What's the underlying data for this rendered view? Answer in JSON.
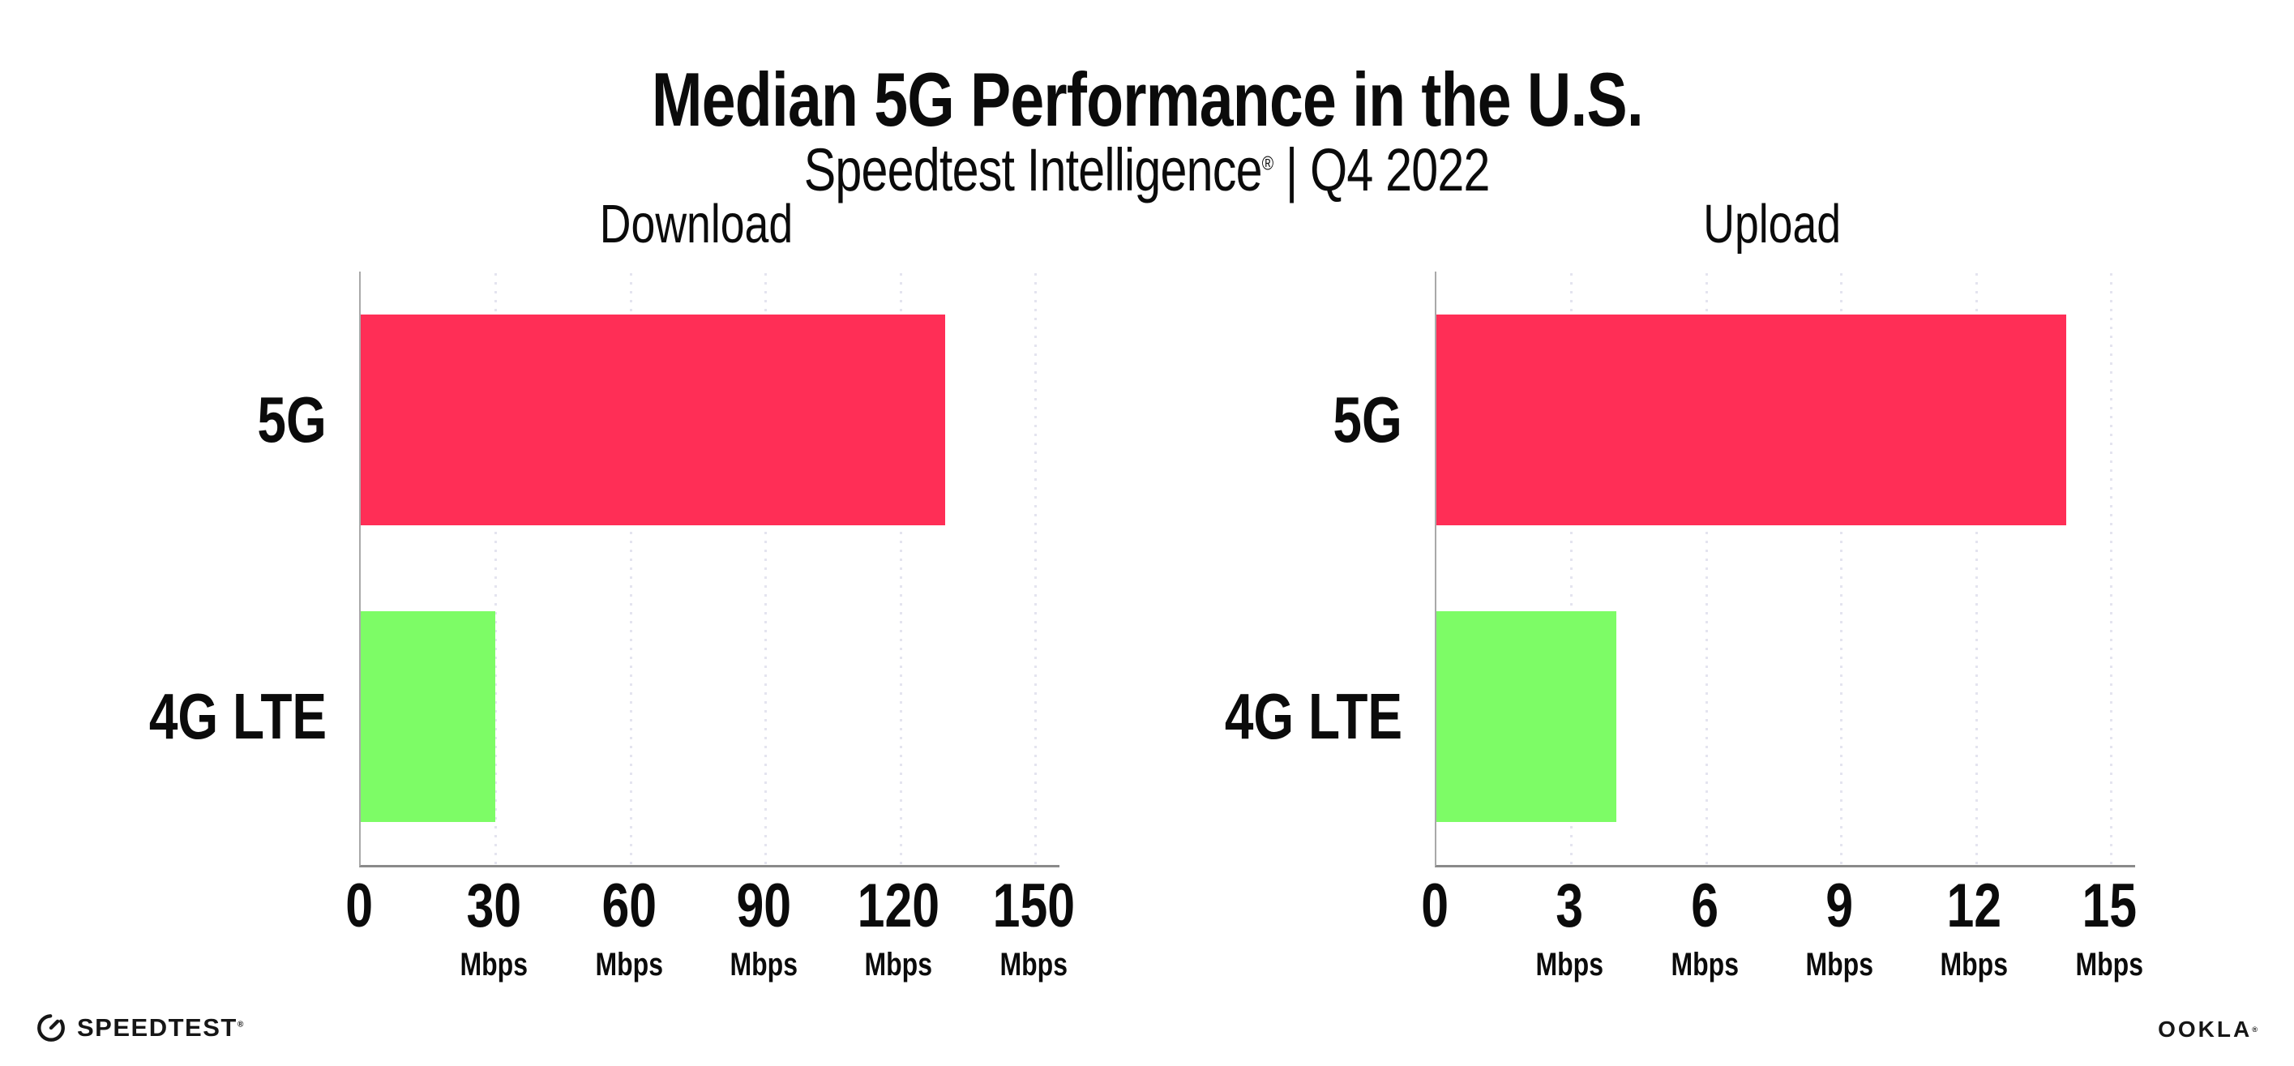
{
  "header": {
    "title": "Median 5G Performance in the U.S.",
    "subtitle_brand": "Speedtest Intelligence",
    "subtitle_mark": "®",
    "subtitle_rest": " | Q4 2022"
  },
  "footer": {
    "speedtest_logo_text": "SPEEDTEST",
    "speedtest_mark": "®",
    "ookla_logo_text": "OOKLA",
    "ookla_mark": "®"
  },
  "colors": {
    "bar_5g": "#FF2E56",
    "bar_4g_lte": "#7DFC66",
    "gridline": "#E4E4EF",
    "x_axis": "#8A8A8A",
    "y_axis": "#A9A9A9",
    "text": "#0B0B0B"
  },
  "chart_data": [
    {
      "type": "bar",
      "orientation": "horizontal",
      "title": "Download",
      "categories": [
        "5G",
        "4G LTE"
      ],
      "values": [
        130,
        30
      ],
      "unit": "Mbps",
      "xlim": [
        0,
        150
      ],
      "xticks": [
        0,
        30,
        60,
        90,
        120,
        150
      ],
      "series_colors": [
        "#FF2E56",
        "#7DFC66"
      ],
      "grid": "dotted-vertical",
      "legend": "none"
    },
    {
      "type": "bar",
      "orientation": "horizontal",
      "title": "Upload",
      "categories": [
        "5G",
        "4G LTE"
      ],
      "values": [
        14,
        4
      ],
      "unit": "Mbps",
      "xlim": [
        0,
        15
      ],
      "xticks": [
        0,
        3,
        6,
        9,
        12,
        15
      ],
      "series_colors": [
        "#FF2E56",
        "#7DFC66"
      ],
      "grid": "dotted-vertical",
      "legend": "none"
    }
  ],
  "layout_note": "two horizontal bar charts side by side, shared category axis labels at left of each plot"
}
